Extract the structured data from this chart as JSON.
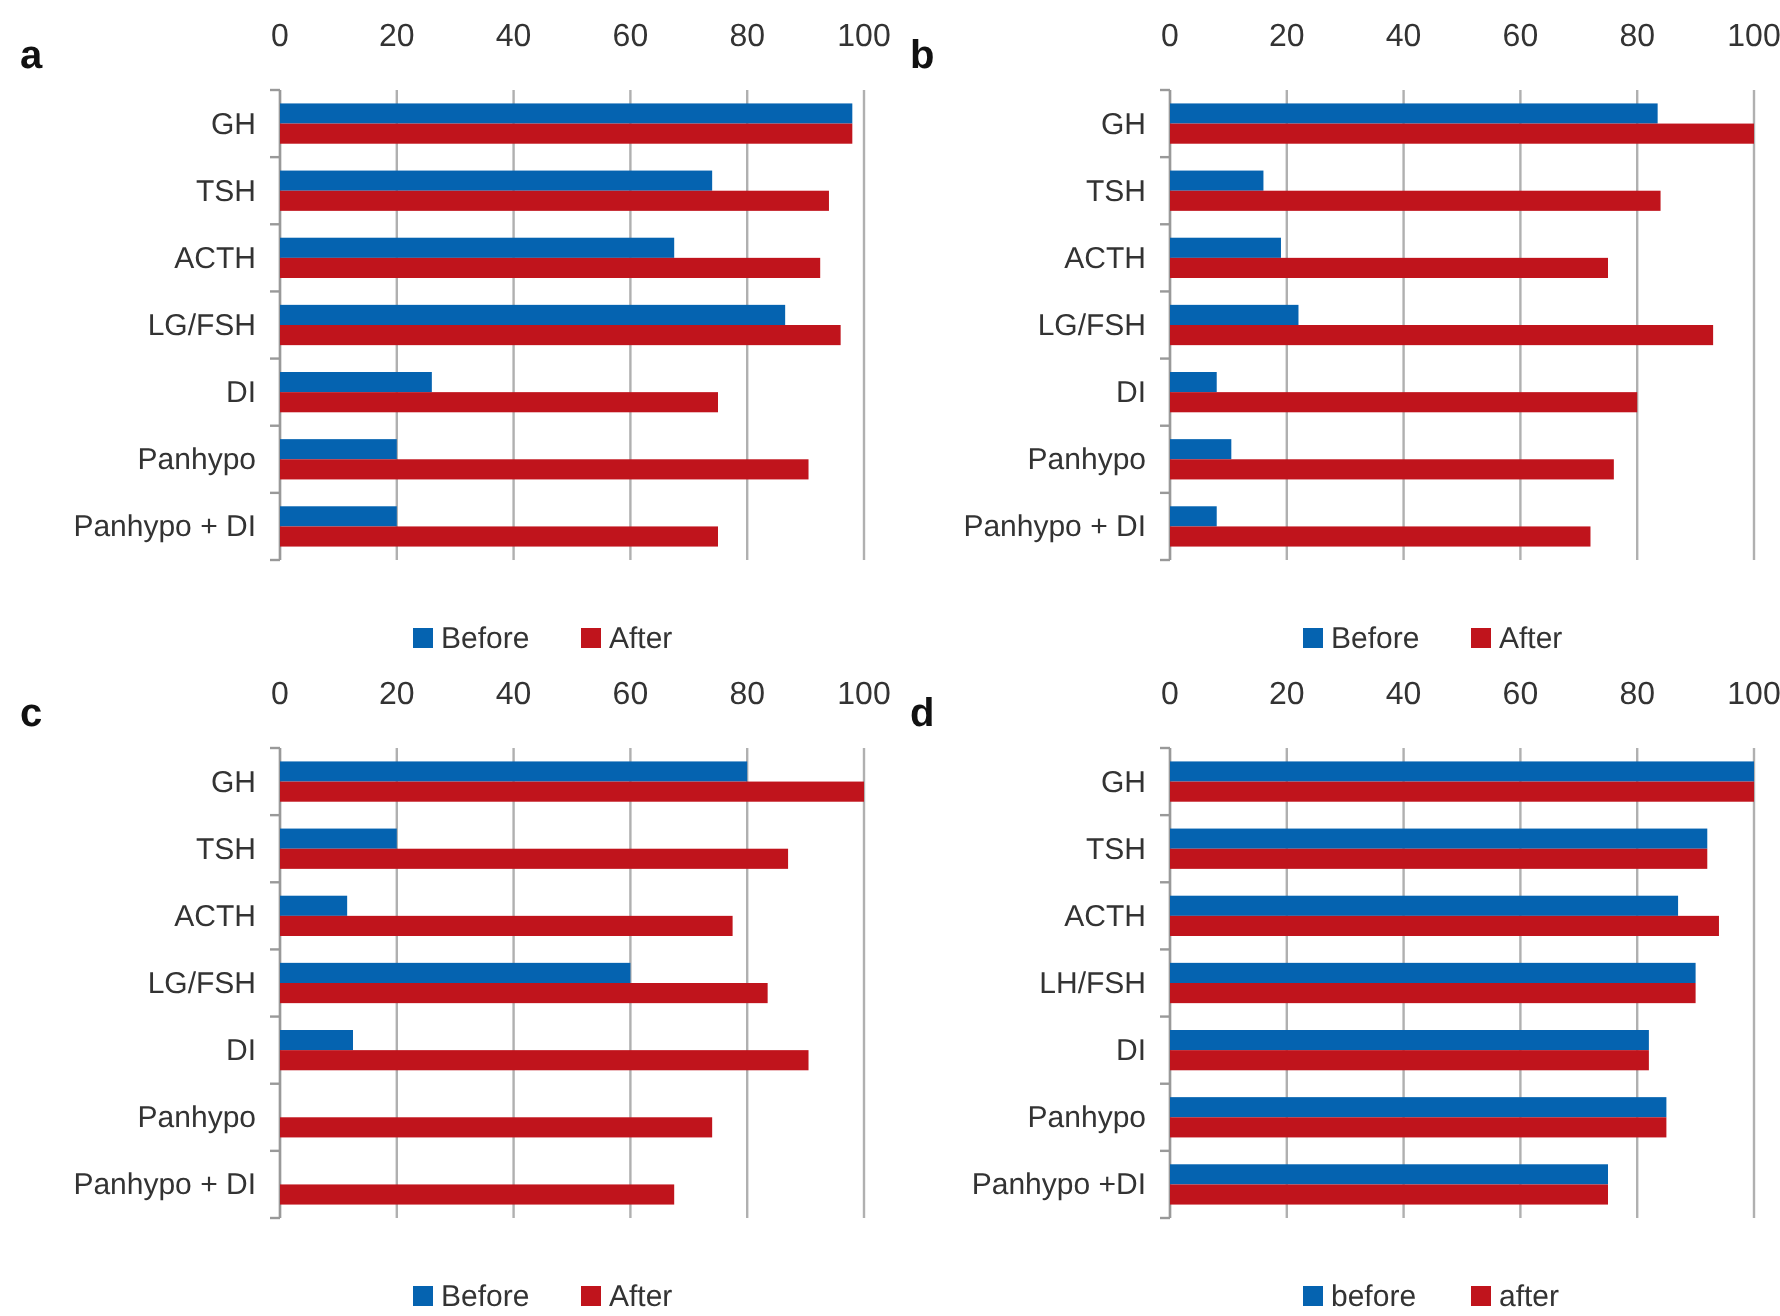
{
  "chart_data": [
    {
      "type": "bar",
      "title": "a",
      "orientation": "horizontal",
      "categories": [
        "GH",
        "TSH",
        "ACTH",
        "LG/FSH",
        "DI",
        "Panhypo",
        "Panhypo + DI"
      ],
      "xlim": [
        0,
        100
      ],
      "xticks": [
        0,
        20,
        40,
        60,
        80,
        100
      ],
      "grid": "x",
      "legend": "bottom",
      "series": [
        {
          "name": "Before",
          "color": "#0563b0",
          "values": [
            98,
            74,
            67.5,
            86.5,
            26,
            20,
            20
          ]
        },
        {
          "name": "After",
          "color": "#c0141c",
          "values": [
            98,
            94,
            92.5,
            96,
            75,
            90.5,
            75
          ]
        }
      ]
    },
    {
      "type": "bar",
      "title": "b",
      "orientation": "horizontal",
      "categories": [
        "GH",
        "TSH",
        "ACTH",
        "LG/FSH",
        "DI",
        "Panhypo",
        "Panhypo + DI"
      ],
      "xlim": [
        0,
        100
      ],
      "xticks": [
        0,
        20,
        40,
        60,
        80,
        100
      ],
      "grid": "x",
      "legend": "bottom",
      "series": [
        {
          "name": "Before",
          "color": "#0563b0",
          "values": [
            83.5,
            16,
            19,
            22,
            8,
            10.5,
            8
          ]
        },
        {
          "name": "After",
          "color": "#c0141c",
          "values": [
            100,
            84,
            75,
            93,
            80,
            76,
            72
          ]
        }
      ]
    },
    {
      "type": "bar",
      "title": "c",
      "orientation": "horizontal",
      "categories": [
        "GH",
        "TSH",
        "ACTH",
        "LG/FSH",
        "DI",
        "Panhypo",
        "Panhypo + DI"
      ],
      "xlim": [
        0,
        100
      ],
      "xticks": [
        0,
        20,
        40,
        60,
        80,
        100
      ],
      "grid": "x",
      "legend": "bottom",
      "series": [
        {
          "name": "Before",
          "color": "#0563b0",
          "values": [
            80,
            20,
            11.5,
            60,
            12.5,
            0,
            0
          ]
        },
        {
          "name": "After",
          "color": "#c0141c",
          "values": [
            100,
            87,
            77.5,
            83.5,
            90.5,
            74,
            67.5
          ]
        }
      ]
    },
    {
      "type": "bar",
      "title": "d",
      "orientation": "horizontal",
      "categories": [
        "GH",
        "TSH",
        "ACTH",
        "LH/FSH",
        "DI",
        "Panhypo",
        "Panhypo +DI"
      ],
      "xlim": [
        0,
        100
      ],
      "xticks": [
        0,
        20,
        40,
        60,
        80,
        100
      ],
      "grid": "x",
      "legend": "bottom",
      "series": [
        {
          "name": "before",
          "color": "#0563b0",
          "values": [
            100,
            92,
            87,
            90,
            82,
            85,
            75
          ]
        },
        {
          "name": "after",
          "color": "#c0141c",
          "values": [
            100,
            92,
            94,
            90,
            82,
            85,
            75
          ]
        }
      ]
    }
  ]
}
